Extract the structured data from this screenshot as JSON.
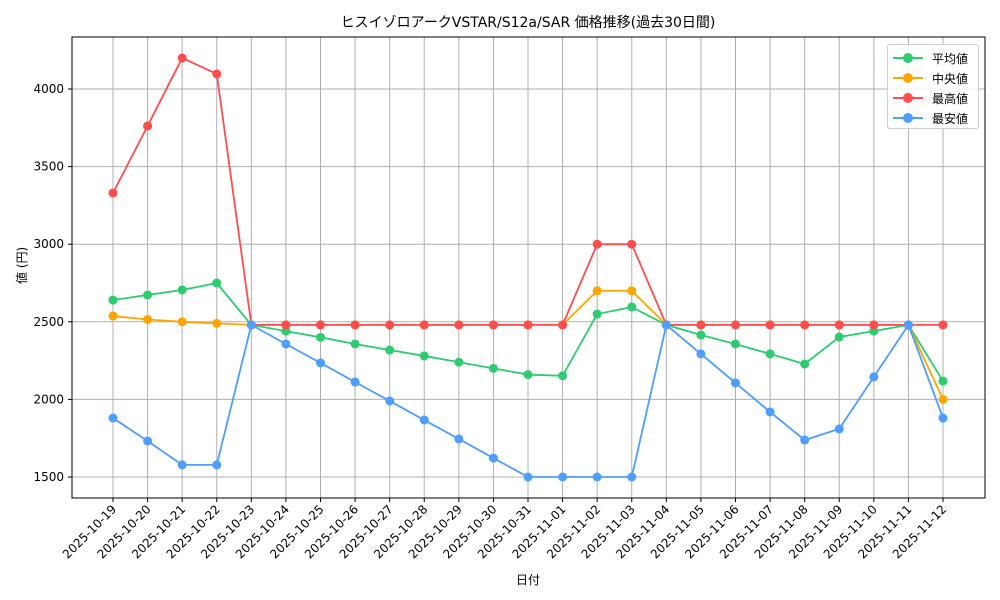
{
  "chart_data": {
    "type": "line",
    "title": "ヒスイゾロアークVSTAR/S12a/SAR 価格推移(過去30日間)",
    "xlabel": "日付",
    "ylabel": "値 (円)",
    "ylim": [
      1360,
      4340
    ],
    "yticks": [
      1500,
      2000,
      2500,
      3000,
      3500,
      4000
    ],
    "grid": true,
    "legend_position": "upper right",
    "categories": [
      "2025-10-19",
      "2025-10-20",
      "2025-10-21",
      "2025-10-22",
      "2025-10-23",
      "2025-10-24",
      "2025-10-25",
      "2025-10-26",
      "2025-10-27",
      "2025-10-28",
      "2025-10-29",
      "2025-10-30",
      "2025-10-31",
      "2025-11-01",
      "2025-11-02",
      "2025-11-03",
      "2025-11-04",
      "2025-11-05",
      "2025-11-06",
      "2025-11-07",
      "2025-11-08",
      "2025-11-09",
      "2025-11-10",
      "2025-11-11",
      "2025-11-12"
    ],
    "series": [
      {
        "name": "平均値",
        "color": "#2ecc71",
        "values": [
          2640,
          2673,
          2705,
          2750,
          2480,
          2440,
          2400,
          2357,
          2318,
          2280,
          2240,
          2200,
          2160,
          2152,
          2550,
          2595,
          2480,
          2415,
          2357,
          2293,
          2228,
          2402,
          2440,
          2480,
          2118
        ]
      },
      {
        "name": "中央値",
        "color": "#ffa500",
        "values": [
          2537,
          2515,
          2500,
          2490,
          2480,
          2480,
          2480,
          2480,
          2480,
          2480,
          2480,
          2480,
          2480,
          2480,
          2700,
          2700,
          2480,
          2480,
          2480,
          2480,
          2480,
          2480,
          2480,
          2480,
          2000
        ]
      },
      {
        "name": "最高値",
        "color": "#ff4d4d",
        "values": [
          3330,
          3762,
          4200,
          4097,
          2480,
          2480,
          2480,
          2480,
          2480,
          2480,
          2480,
          2480,
          2480,
          2480,
          3000,
          3000,
          2480,
          2480,
          2480,
          2480,
          2480,
          2480,
          2480,
          2480,
          2480
        ]
      },
      {
        "name": "最安値",
        "color": "#4d9eff",
        "values": [
          1880,
          1732,
          1578,
          1578,
          2480,
          2357,
          2235,
          2112,
          1990,
          1867,
          1745,
          1622,
          1500,
          1500,
          1500,
          1500,
          2480,
          2293,
          2106,
          1919,
          1738,
          1810,
          2145,
          2480,
          1880
        ]
      }
    ]
  },
  "legend": [
    {
      "label": "平均値",
      "color": "#2ecc71"
    },
    {
      "label": "中央値",
      "color": "#ffa500"
    },
    {
      "label": "最高値",
      "color": "#ff4d4d"
    },
    {
      "label": "最安値",
      "color": "#4d9eff"
    }
  ]
}
